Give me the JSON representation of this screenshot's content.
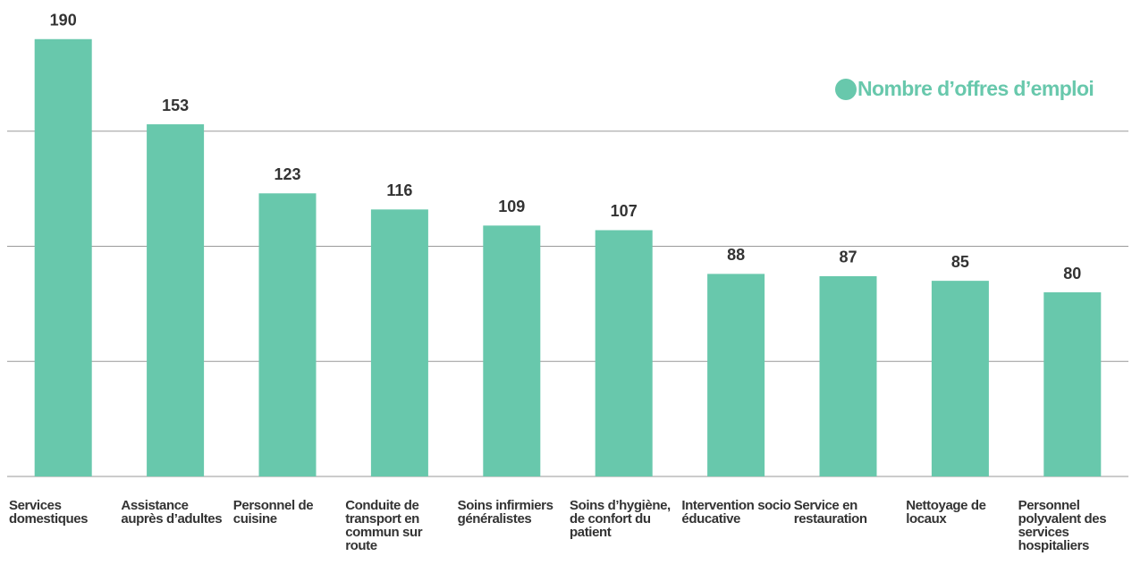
{
  "chart_data": {
    "type": "bar",
    "categories": [
      "Services domestiques",
      "Assistance auprès d’adultes",
      "Personnel de cuisine",
      "Conduite de transport en commun sur route",
      "Soins infirmiers généralistes",
      "Soins d’hygiène, de confort du patient",
      "Intervention socio éducative",
      "Service en restauration",
      "Nettoyage de locaux",
      "Personnel polyvalent des services hospitaliers"
    ],
    "series": [
      {
        "name": "Nombre d’offres d’emploi",
        "color": "#68c8ac",
        "values": [
          190,
          153,
          123,
          116,
          109,
          107,
          88,
          87,
          85,
          80
        ]
      }
    ],
    "ylim": [
      0,
      207
    ],
    "yticks": [
      0,
      50,
      100,
      150
    ],
    "grid": true,
    "legend": "top-right"
  }
}
